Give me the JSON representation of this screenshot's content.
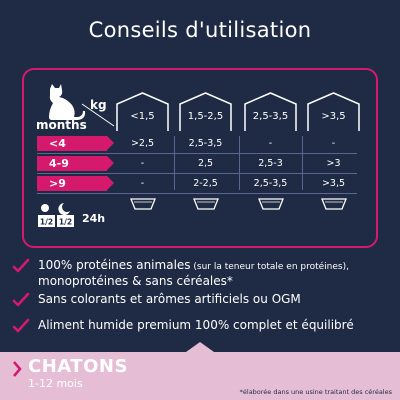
{
  "title": "Conseils d'utilisation",
  "colors": {
    "background": "#1f2a44",
    "accent": "#d51a6e",
    "footer": "#e5bed6"
  },
  "table": {
    "unit_kg": "kg",
    "unit_months": "months",
    "weight_columns": [
      "<1,5",
      "1,5-2,5",
      "2,5-3,5",
      ">3,5"
    ],
    "rows": [
      {
        "age": "<4",
        "values": [
          ">2,5",
          "2,5-3,5",
          "-",
          "-"
        ]
      },
      {
        "age": "4-9",
        "values": [
          "-",
          "2,5",
          "2,5-3",
          ">3"
        ]
      },
      {
        "age": ">9",
        "values": [
          "-",
          "2-2,5",
          "2,5-3,5",
          ">3,5"
        ]
      }
    ],
    "portion_left": "1/2",
    "portion_right": "1/2",
    "duration": "24h",
    "icons": [
      "cat-silhouette-icon",
      "house-icon",
      "food-tray-icon",
      "sun-moon-icon"
    ]
  },
  "claims": [
    {
      "main": "100% protéines animales",
      "note": " (sur la teneur totale en protéines),",
      "line2": "monoprotéines & sans céréales*"
    },
    {
      "main": "Sans colorants et arômes artificiels ou OGM"
    },
    {
      "main": "Aliment humide premium 100% complet et équilibré"
    }
  ],
  "footer": {
    "product": "CHATONS",
    "age_range": "1-12 mois",
    "footnote": "*élaborée dans une usine traitant des céréales"
  }
}
